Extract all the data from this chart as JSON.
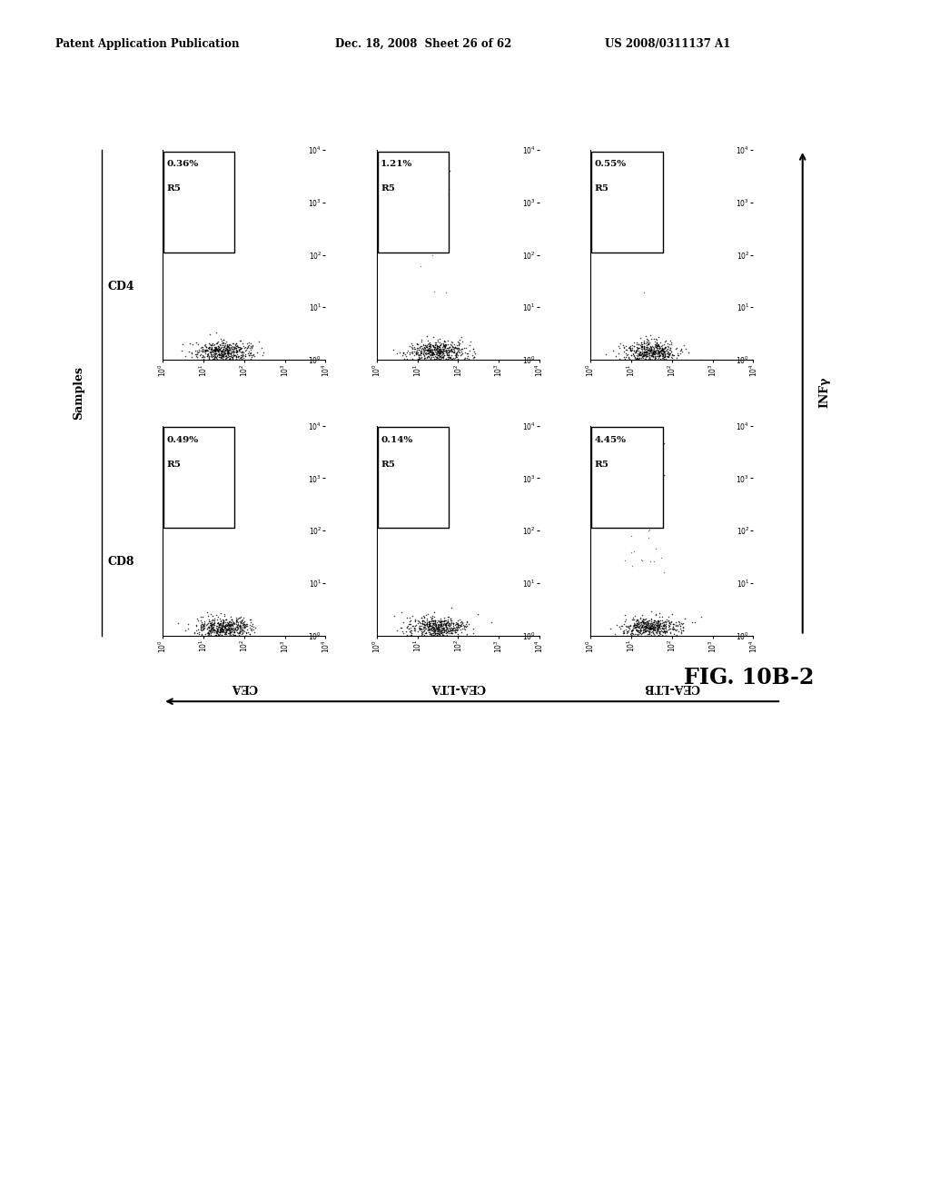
{
  "header_left": "Patent Application Publication",
  "header_mid": "Dec. 18, 2008  Sheet 26 of 62",
  "header_right": "US 2008/0311137 A1",
  "figure_label": "FIG. 10B-2",
  "rows": [
    "CD4",
    "CD8"
  ],
  "cols": [
    "CEA",
    "CEA-LTA",
    "CEA-LTB"
  ],
  "y_axis_label": "INFγ",
  "x_axis_label": "Samples",
  "cell_data": [
    [
      {
        "pct": "0.36%",
        "gate": "R5",
        "extra": 0
      },
      {
        "pct": "1.21%",
        "gate": "R5",
        "extra": 8
      },
      {
        "pct": "0.55%",
        "gate": "R5",
        "extra": 3
      }
    ],
    [
      {
        "pct": "0.49%",
        "gate": "R5",
        "extra": 0
      },
      {
        "pct": "0.14%",
        "gate": "R5",
        "extra": 0
      },
      {
        "pct": "4.45%",
        "gate": "R5",
        "extra": 30
      }
    ]
  ],
  "bg_color": "#ffffff",
  "text_color": "#000000"
}
